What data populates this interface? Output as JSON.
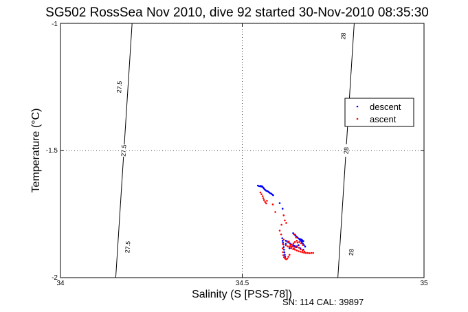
{
  "chart_data": {
    "type": "scatter",
    "title": "SG502 RossSea Nov 2010, dive 92 started 30-Nov-2010 08:35:30",
    "xlabel": "Salinity (S [PSS-78])",
    "ylabel": "Temperature (°C)",
    "xlim": [
      34,
      35
    ],
    "ylim": [
      -2,
      -1
    ],
    "xticks": [
      "34",
      "34.5",
      "35"
    ],
    "yticks": [
      "-1",
      "-1.5",
      "-2"
    ],
    "grid": "dotted",
    "legend_position": "right",
    "footer": "SN: 114  CAL: 39897",
    "contours": [
      {
        "label": "27.5",
        "points": [
          [
            34.152,
            -2.0
          ],
          [
            34.197,
            -1.0
          ]
        ],
        "label_positions": [
          [
            34.162,
            -1.25
          ],
          [
            34.174,
            -1.5
          ],
          [
            34.185,
            -1.88
          ]
        ]
      },
      {
        "label": "28",
        "points": [
          [
            34.763,
            -2.0
          ],
          [
            34.808,
            -1.0
          ]
        ],
        "label_positions": [
          [
            34.778,
            -1.05
          ],
          [
            34.786,
            -1.5
          ],
          [
            34.8,
            -1.9
          ]
        ]
      }
    ],
    "series": [
      {
        "name": "descent",
        "color": "#0000ff",
        "points": [
          [
            34.543,
            -1.638
          ],
          [
            34.546,
            -1.64
          ],
          [
            34.549,
            -1.641
          ],
          [
            34.551,
            -1.639
          ],
          [
            34.553,
            -1.642
          ],
          [
            34.555,
            -1.641
          ],
          [
            34.557,
            -1.645
          ],
          [
            34.559,
            -1.648
          ],
          [
            34.561,
            -1.652
          ],
          [
            34.563,
            -1.655
          ],
          [
            34.566,
            -1.658
          ],
          [
            34.569,
            -1.66
          ],
          [
            34.572,
            -1.662
          ],
          [
            34.574,
            -1.665
          ],
          [
            34.577,
            -1.668
          ],
          [
            34.58,
            -1.67
          ],
          [
            34.583,
            -1.673
          ],
          [
            34.585,
            -1.676
          ],
          [
            34.61,
            -1.845
          ],
          [
            34.611,
            -1.855
          ],
          [
            34.612,
            -1.862
          ],
          [
            34.613,
            -1.87
          ],
          [
            34.614,
            -1.88
          ],
          [
            34.615,
            -1.89
          ],
          [
            34.616,
            -1.9
          ],
          [
            34.617,
            -1.91
          ],
          [
            34.618,
            -1.918
          ],
          [
            34.62,
            -1.855
          ],
          [
            34.624,
            -1.858
          ],
          [
            34.628,
            -1.862
          ],
          [
            34.632,
            -1.866
          ],
          [
            34.636,
            -1.87
          ],
          [
            34.64,
            -1.872
          ],
          [
            34.644,
            -1.875
          ],
          [
            34.648,
            -1.878
          ],
          [
            34.64,
            -1.825
          ],
          [
            34.643,
            -1.83
          ],
          [
            34.646,
            -1.834
          ],
          [
            34.649,
            -1.838
          ],
          [
            34.652,
            -1.842
          ],
          [
            34.655,
            -1.846
          ],
          [
            34.658,
            -1.85
          ],
          [
            34.661,
            -1.855
          ],
          [
            34.664,
            -1.86
          ],
          [
            34.667,
            -1.866
          ],
          [
            34.67,
            -1.872
          ],
          [
            34.673,
            -1.878
          ],
          [
            34.663,
            -1.85
          ],
          [
            34.665,
            -1.853
          ],
          [
            34.668,
            -1.856
          ],
          [
            34.659,
            -1.848
          ],
          [
            34.603,
            -1.707
          ],
          [
            34.611,
            -1.729
          ],
          [
            34.62,
            -1.867
          ],
          [
            34.63,
            -1.884
          ],
          [
            34.642,
            -1.876
          ],
          [
            34.65,
            -1.88
          ],
          [
            34.655,
            -1.872
          ],
          [
            34.66,
            -1.885
          ],
          [
            34.668,
            -1.89
          ]
        ]
      },
      {
        "name": "ascent",
        "color": "#ff0000",
        "points": [
          [
            34.55,
            -1.665
          ],
          [
            34.553,
            -1.672
          ],
          [
            34.556,
            -1.68
          ],
          [
            34.558,
            -1.688
          ],
          [
            34.56,
            -1.695
          ],
          [
            34.563,
            -1.702
          ],
          [
            34.566,
            -1.708
          ],
          [
            34.568,
            -1.698
          ],
          [
            34.584,
            -1.712
          ],
          [
            34.591,
            -1.742
          ],
          [
            34.608,
            -1.792
          ],
          [
            34.603,
            -1.815
          ],
          [
            34.607,
            -1.83
          ],
          [
            34.614,
            -1.755
          ],
          [
            34.617,
            -1.775
          ],
          [
            34.621,
            -1.785
          ],
          [
            34.614,
            -1.85
          ],
          [
            34.612,
            -1.868
          ],
          [
            34.611,
            -1.885
          ],
          [
            34.612,
            -1.9
          ],
          [
            34.613,
            -1.912
          ],
          [
            34.615,
            -1.92
          ],
          [
            34.618,
            -1.925
          ],
          [
            34.621,
            -1.928
          ],
          [
            34.624,
            -1.925
          ],
          [
            34.627,
            -1.918
          ],
          [
            34.63,
            -1.91
          ],
          [
            34.62,
            -1.873
          ],
          [
            34.625,
            -1.877
          ],
          [
            34.63,
            -1.88
          ],
          [
            34.635,
            -1.884
          ],
          [
            34.64,
            -1.888
          ],
          [
            34.645,
            -1.89
          ],
          [
            34.65,
            -1.893
          ],
          [
            34.655,
            -1.896
          ],
          [
            34.66,
            -1.898
          ],
          [
            34.665,
            -1.9
          ],
          [
            34.67,
            -1.902
          ],
          [
            34.675,
            -1.903
          ],
          [
            34.68,
            -1.903
          ],
          [
            34.685,
            -1.904
          ],
          [
            34.69,
            -1.903
          ],
          [
            34.695,
            -1.903
          ],
          [
            34.632,
            -1.876
          ],
          [
            34.636,
            -1.87
          ],
          [
            34.641,
            -1.865
          ],
          [
            34.645,
            -1.86
          ],
          [
            34.625,
            -1.86
          ],
          [
            34.628,
            -1.858
          ],
          [
            34.633,
            -1.87
          ],
          [
            34.637,
            -1.878
          ],
          [
            34.642,
            -1.885
          ],
          [
            34.646,
            -1.88
          ],
          [
            34.651,
            -1.876
          ],
          [
            34.656,
            -1.882
          ],
          [
            34.661,
            -1.889
          ],
          [
            34.666,
            -1.893
          ],
          [
            34.671,
            -1.897
          ],
          [
            34.645,
            -1.83
          ],
          [
            34.648,
            -1.842
          ],
          [
            34.65,
            -1.855
          ],
          [
            34.652,
            -1.862
          ],
          [
            34.657,
            -1.86
          ],
          [
            34.662,
            -1.865
          ],
          [
            34.667,
            -1.872
          ]
        ]
      }
    ]
  }
}
